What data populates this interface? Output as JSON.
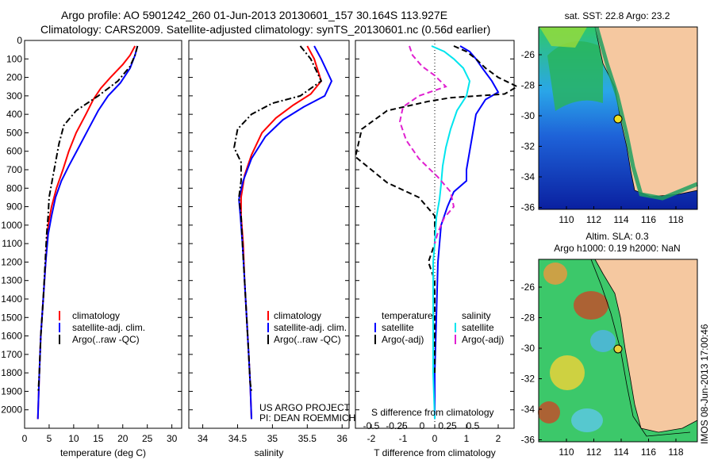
{
  "title_line1": "Argo profile: AO 5901242_260 01-Jun-2013 20130601_157 30.164S 113.927E",
  "title_line2": "Climatology: CARS2009. Satellite-adjusted climatology: synTS_20130601.nc (0.56d earlier)",
  "footer_vertical": "IMOS 08-Jun-2013 17:00:46",
  "project_line1": "US ARGO PROJECT",
  "project_line2": "PI: DEAN ROEMMICH",
  "colors": {
    "clim": "#ff0000",
    "sat": "#0000ff",
    "argo": "#000000",
    "sat_s": "#00e5ee",
    "argo_s": "#e020d0",
    "land": "#f5c8a0"
  },
  "chart_data": [
    {
      "type": "line",
      "id": "temperature",
      "xlabel": "temperature (deg C)",
      "xlim": [
        0,
        32
      ],
      "ylim": [
        2100,
        0
      ],
      "xticks": [
        0,
        5,
        10,
        15,
        20,
        25,
        30
      ],
      "yticks": [
        0,
        100,
        200,
        300,
        400,
        500,
        600,
        700,
        800,
        900,
        1000,
        1100,
        1200,
        1300,
        1400,
        1500,
        1600,
        1700,
        1800,
        1900,
        2000
      ],
      "legend": [
        "climatology",
        "satellite-adj. clim.",
        "Argo(..raw -QC)"
      ],
      "series": [
        {
          "name": "climatology",
          "style": "solid",
          "color": "clim",
          "pts": [
            [
              22.5,
              30
            ],
            [
              21.5,
              80
            ],
            [
              20,
              130
            ],
            [
              17.5,
              200
            ],
            [
              15.5,
              260
            ],
            [
              14,
              320
            ],
            [
              12.5,
              400
            ],
            [
              10.5,
              500
            ],
            [
              9,
              600
            ],
            [
              7.8,
              700
            ],
            [
              6.5,
              800
            ],
            [
              5.5,
              900
            ],
            [
              4.8,
              1000
            ],
            [
              4.3,
              1200
            ],
            [
              3.8,
              1400
            ],
            [
              3.3,
              1600
            ],
            [
              3,
              1800
            ],
            [
              2.7,
              2050
            ]
          ]
        },
        {
          "name": "satellite-adj. clim.",
          "style": "solid",
          "color": "sat",
          "pts": [
            [
              23,
              30
            ],
            [
              22.5,
              80
            ],
            [
              21.5,
              150
            ],
            [
              19.5,
              230
            ],
            [
              17,
              300
            ],
            [
              15,
              380
            ],
            [
              13,
              480
            ],
            [
              11,
              580
            ],
            [
              9,
              680
            ],
            [
              7.5,
              760
            ],
            [
              6.3,
              850
            ],
            [
              5.5,
              950
            ],
            [
              4.8,
              1050
            ],
            [
              4.3,
              1200
            ],
            [
              3.8,
              1400
            ],
            [
              3.3,
              1600
            ],
            [
              3,
              1800
            ],
            [
              2.7,
              2050
            ]
          ]
        },
        {
          "name": "Argo(..raw -QC)",
          "style": "dashdot",
          "color": "argo",
          "pts": [
            [
              23,
              30
            ],
            [
              22.5,
              80
            ],
            [
              21.5,
              140
            ],
            [
              19,
              220
            ],
            [
              15,
              300
            ],
            [
              10.5,
              380
            ],
            [
              8,
              460
            ],
            [
              7,
              560
            ],
            [
              6.3,
              660
            ],
            [
              5.6,
              760
            ],
            [
              5,
              850
            ],
            [
              4.8,
              950
            ],
            [
              4.5,
              1050
            ],
            [
              4.2,
              1200
            ],
            [
              3.8,
              1400
            ],
            [
              3.3,
              1600
            ],
            [
              3,
              1800
            ],
            [
              2.8,
              1900
            ]
          ]
        }
      ]
    },
    {
      "type": "line",
      "id": "salinity",
      "xlabel": "salinity",
      "xlim": [
        33.8,
        36.1
      ],
      "ylim": [
        2100,
        0
      ],
      "xticks": [
        34,
        34.5,
        35,
        35.5,
        36
      ],
      "legend": [
        "climatology",
        "satellite-adj. clim.",
        "Argo(..raw -QC)"
      ],
      "series": [
        {
          "name": "climatology",
          "style": "solid",
          "color": "clim",
          "pts": [
            [
              35.5,
              30
            ],
            [
              35.6,
              100
            ],
            [
              35.7,
              220
            ],
            [
              35.55,
              290
            ],
            [
              35.3,
              350
            ],
            [
              35.05,
              420
            ],
            [
              34.85,
              500
            ],
            [
              34.7,
              620
            ],
            [
              34.6,
              730
            ],
            [
              34.55,
              850
            ],
            [
              34.55,
              950
            ],
            [
              34.58,
              1100
            ],
            [
              34.6,
              1300
            ],
            [
              34.63,
              1500
            ],
            [
              34.66,
              1700
            ],
            [
              34.68,
              1850
            ],
            [
              34.7,
              2050
            ]
          ]
        },
        {
          "name": "satellite-adj. clim.",
          "style": "solid",
          "color": "sat",
          "pts": [
            [
              35.6,
              30
            ],
            [
              35.7,
              100
            ],
            [
              35.85,
              220
            ],
            [
              35.75,
              300
            ],
            [
              35.45,
              360
            ],
            [
              35.15,
              430
            ],
            [
              34.9,
              520
            ],
            [
              34.7,
              640
            ],
            [
              34.58,
              760
            ],
            [
              34.52,
              860
            ],
            [
              34.54,
              950
            ],
            [
              34.57,
              1100
            ],
            [
              34.6,
              1300
            ],
            [
              34.63,
              1500
            ],
            [
              34.66,
              1700
            ],
            [
              34.68,
              1850
            ],
            [
              34.7,
              2050
            ]
          ]
        },
        {
          "name": "Argo(..raw -QC)",
          "style": "dashdot",
          "color": "argo",
          "pts": [
            [
              35.4,
              30
            ],
            [
              35.55,
              100
            ],
            [
              35.7,
              220
            ],
            [
              35.4,
              300
            ],
            [
              35.0,
              340
            ],
            [
              34.7,
              400
            ],
            [
              34.5,
              480
            ],
            [
              34.45,
              580
            ],
            [
              34.55,
              660
            ],
            [
              34.55,
              760
            ],
            [
              34.52,
              850
            ],
            [
              34.55,
              950
            ],
            [
              34.57,
              1100
            ],
            [
              34.6,
              1300
            ],
            [
              34.63,
              1500
            ],
            [
              34.66,
              1700
            ],
            [
              34.68,
              1850
            ],
            [
              34.7,
              1900
            ]
          ]
        }
      ]
    },
    {
      "type": "line",
      "id": "difference",
      "xlabel": "T difference from climatology",
      "xlabel_top": "S difference from climatology",
      "xlim": [
        -2.5,
        2.5
      ],
      "ylim": [
        2100,
        0
      ],
      "xticks": [
        -2,
        -1,
        0,
        1,
        2
      ],
      "xticks_s": [
        "-0.5",
        "-0.25",
        "0",
        "0.25",
        "0.5"
      ],
      "legend_temp_title": "temperature",
      "legend_sal_title": "salinity",
      "legend": [
        "satellite",
        "Argo(-adj)",
        "satellite",
        "Argo(-adj)"
      ],
      "series": [
        {
          "name": "T satellite",
          "style": "solid",
          "color": "sat",
          "pts": [
            [
              0.8,
              30
            ],
            [
              1.1,
              60
            ],
            [
              1.3,
              100
            ],
            [
              1.5,
              150
            ],
            [
              1.8,
              220
            ],
            [
              2,
              280
            ],
            [
              1.6,
              320
            ],
            [
              1.3,
              400
            ],
            [
              1.2,
              500
            ],
            [
              1.1,
              600
            ],
            [
              1.0,
              700
            ],
            [
              1.0,
              760
            ],
            [
              0.6,
              820
            ],
            [
              0.4,
              900
            ],
            [
              0.2,
              1000
            ],
            [
              0.1,
              1200
            ],
            [
              0.05,
              1500
            ],
            [
              0,
              1800
            ],
            [
              0,
              2050
            ]
          ]
        },
        {
          "name": "T Argo(-adj)",
          "style": "dashed",
          "color": "argo",
          "pts": [
            [
              0.6,
              30
            ],
            [
              1,
              60
            ],
            [
              1.3,
              100
            ],
            [
              1.6,
              150
            ],
            [
              2,
              200
            ],
            [
              2.6,
              250
            ],
            [
              2.2,
              290
            ],
            [
              0.5,
              310
            ],
            [
              -0.2,
              330
            ],
            [
              -1.5,
              380
            ],
            [
              -2.3,
              480
            ],
            [
              -2.5,
              630
            ],
            [
              -2,
              700
            ],
            [
              -1.5,
              770
            ],
            [
              -0.5,
              850
            ],
            [
              0,
              950
            ],
            [
              0,
              1100
            ],
            [
              -0.2,
              1200
            ],
            [
              0,
              1300
            ],
            [
              0,
              1500
            ],
            [
              0,
              1800
            ]
          ]
        },
        {
          "name": "S satellite",
          "style": "solid",
          "color": "sat_s",
          "pts": [
            [
              -0.1,
              30
            ],
            [
              0.3,
              60
            ],
            [
              0.6,
              100
            ],
            [
              0.9,
              150
            ],
            [
              1.1,
              220
            ],
            [
              1.0,
              300
            ],
            [
              0.7,
              380
            ],
            [
              0.5,
              480
            ],
            [
              0.35,
              580
            ],
            [
              0.25,
              680
            ],
            [
              0.2,
              780
            ],
            [
              0.15,
              860
            ],
            [
              0.05,
              960
            ],
            [
              0,
              1100
            ],
            [
              -0.05,
              1200
            ],
            [
              -0.05,
              1400
            ],
            [
              -0.05,
              1600
            ],
            [
              -0.05,
              1800
            ],
            [
              0,
              2050
            ]
          ]
        },
        {
          "name": "S Argo(-adj)",
          "style": "dashed",
          "color": "argo_s",
          "pts": [
            [
              -0.8,
              30
            ],
            [
              -0.7,
              80
            ],
            [
              -0.4,
              140
            ],
            [
              0,
              190
            ],
            [
              0.35,
              250
            ],
            [
              -0.5,
              300
            ],
            [
              -1.0,
              360
            ],
            [
              -1.1,
              440
            ],
            [
              -0.9,
              540
            ],
            [
              -0.5,
              640
            ],
            [
              0.1,
              740
            ],
            [
              0.5,
              820
            ],
            [
              0.6,
              900
            ],
            [
              0.3,
              960
            ],
            [
              0.1,
              1040
            ],
            [
              0,
              1100
            ]
          ]
        }
      ]
    }
  ],
  "maps": [
    {
      "id": "sst-map",
      "title": "sat. SST: 22.8 Argo: 23.2",
      "yticks": [
        "-26",
        "-28",
        "-30",
        "-32",
        "-34",
        "-36"
      ],
      "xticks": [
        "110",
        "112",
        "114",
        "116",
        "118"
      ]
    },
    {
      "id": "sla-map",
      "title_line1": "Altim. SLA: 0.3",
      "title_line2": "Argo h1000: 0.19 h2000: NaN",
      "yticks": [
        "-26",
        "-28",
        "-30",
        "-32",
        "-34",
        "-36"
      ],
      "xticks": [
        "110",
        "112",
        "114",
        "116",
        "118"
      ]
    }
  ]
}
